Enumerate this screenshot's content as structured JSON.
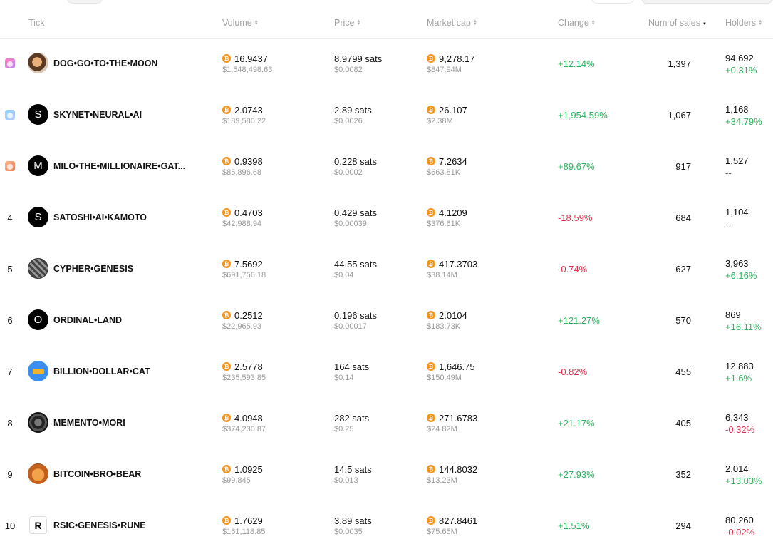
{
  "header": {
    "tick": "Tick",
    "volume": "Volume",
    "price": "Price",
    "market_cap": "Market cap",
    "change": "Change",
    "num_sales": "Num of sales",
    "holders": "Holders"
  },
  "rows": [
    {
      "rank": "1",
      "rank_icon": "gold-medal-icon",
      "avatar": "dog-avatar",
      "avatar_letter": "",
      "tick": "DOG•GO•TO•THE•MOON",
      "volume_btc": "16.9437",
      "volume_usd": "$1,548,498.63",
      "price_sats": "8.9799 sats",
      "price_usd": "$0.0082",
      "mcap_btc": "9,278.17",
      "mcap_usd": "$847.94M",
      "change": "+12.14%",
      "change_dir": "pos",
      "sales": "1,397",
      "holders": "94,692",
      "holders_change": "+0.31%",
      "holders_dir": "pos"
    },
    {
      "rank": "2",
      "rank_icon": "silver-medal-icon",
      "avatar": "letter",
      "avatar_letter": "S",
      "tick": "SKYNET•NEURAL•AI",
      "volume_btc": "2.0743",
      "volume_usd": "$189,580.22",
      "price_sats": "2.89 sats",
      "price_usd": "$0.0026",
      "mcap_btc": "26.107",
      "mcap_usd": "$2.38M",
      "change": "+1,954.59%",
      "change_dir": "pos",
      "sales": "1,067",
      "holders": "1,168",
      "holders_change": "+34.79%",
      "holders_dir": "pos"
    },
    {
      "rank": "3",
      "rank_icon": "bronze-medal-icon",
      "avatar": "letter",
      "avatar_letter": "M",
      "tick": "MILO•THE•MILLIONAIRE•GAT...",
      "volume_btc": "0.9398",
      "volume_usd": "$85,896.68",
      "price_sats": "0.228 sats",
      "price_usd": "$0.0002",
      "mcap_btc": "7.2634",
      "mcap_usd": "$663.81K",
      "change": "+89.67%",
      "change_dir": "pos",
      "sales": "917",
      "holders": "1,527",
      "holders_change": "--",
      "holders_dir": "none"
    },
    {
      "rank": "4",
      "rank_icon": "",
      "avatar": "letter",
      "avatar_letter": "S",
      "tick": "SATOSHI•AI•KAMOTO",
      "volume_btc": "0.4703",
      "volume_usd": "$42,988.94",
      "price_sats": "0.429 sats",
      "price_usd": "$0.00039",
      "mcap_btc": "4.1209",
      "mcap_usd": "$376.61K",
      "change": "-18.59%",
      "change_dir": "neg",
      "sales": "684",
      "holders": "1,104",
      "holders_change": "--",
      "holders_dir": "none"
    },
    {
      "rank": "5",
      "rank_icon": "",
      "avatar": "cypher-avatar",
      "avatar_letter": "",
      "tick": "CYPHER•GENESIS",
      "volume_btc": "7.5692",
      "volume_usd": "$691,756.18",
      "price_sats": "44.55 sats",
      "price_usd": "$0.04",
      "mcap_btc": "417.3703",
      "mcap_usd": "$38.14M",
      "change": "-0.74%",
      "change_dir": "neg",
      "sales": "627",
      "holders": "3,963",
      "holders_change": "+6.16%",
      "holders_dir": "pos"
    },
    {
      "rank": "6",
      "rank_icon": "",
      "avatar": "letter",
      "avatar_letter": "O",
      "tick": "ORDINAL•LAND",
      "volume_btc": "0.2512",
      "volume_usd": "$22,965.93",
      "price_sats": "0.196 sats",
      "price_usd": "$0.00017",
      "mcap_btc": "2.0104",
      "mcap_usd": "$183.73K",
      "change": "+121.27%",
      "change_dir": "pos",
      "sales": "570",
      "holders": "869",
      "holders_change": "+16.11%",
      "holders_dir": "pos"
    },
    {
      "rank": "7",
      "rank_icon": "",
      "avatar": "cat-avatar",
      "avatar_letter": "",
      "tick": "BILLION•DOLLAR•CAT",
      "volume_btc": "2.5778",
      "volume_usd": "$235,593.85",
      "price_sats": "164 sats",
      "price_usd": "$0.14",
      "mcap_btc": "1,646.75",
      "mcap_usd": "$150.49M",
      "change": "-0.82%",
      "change_dir": "neg",
      "sales": "455",
      "holders": "12,883",
      "holders_change": "+1.6%",
      "holders_dir": "pos"
    },
    {
      "rank": "8",
      "rank_icon": "",
      "avatar": "mori-avatar",
      "avatar_letter": "",
      "tick": "MEMENTO•MORI",
      "volume_btc": "4.0948",
      "volume_usd": "$374,230.87",
      "price_sats": "282 sats",
      "price_usd": "$0.25",
      "mcap_btc": "271.6783",
      "mcap_usd": "$24.82M",
      "change": "+21.17%",
      "change_dir": "pos",
      "sales": "405",
      "holders": "6,343",
      "holders_change": "-0.32%",
      "holders_dir": "neg"
    },
    {
      "rank": "9",
      "rank_icon": "",
      "avatar": "bear-avatar",
      "avatar_letter": "",
      "tick": "BITCOIN•BRO•BEAR",
      "volume_btc": "1.0925",
      "volume_usd": "$99,845",
      "price_sats": "14.5 sats",
      "price_usd": "$0.013",
      "mcap_btc": "144.8032",
      "mcap_usd": "$13.23M",
      "change": "+27.93%",
      "change_dir": "pos",
      "sales": "352",
      "holders": "2,014",
      "holders_change": "+13.03%",
      "holders_dir": "pos"
    },
    {
      "rank": "10",
      "rank_icon": "",
      "avatar": "rsic-avatar",
      "avatar_letter": "R",
      "tick": "RSIC•GENESIS•RUNE",
      "volume_btc": "1.7629",
      "volume_usd": "$161,118.85",
      "price_sats": "3.89 sats",
      "price_usd": "$0.0035",
      "mcap_btc": "827.8461",
      "mcap_usd": "$75.65M",
      "change": "+1.51%",
      "change_dir": "pos",
      "sales": "294",
      "holders": "80,260",
      "holders_change": "-0.02%",
      "holders_dir": "neg"
    }
  ],
  "colors": {
    "positive": "#2fb45e",
    "negative": "#e0324f",
    "bitcoin": "#f7931a"
  },
  "icons": {
    "currency": "bitcoin-icon",
    "sort": "sort-arrows-icon"
  }
}
